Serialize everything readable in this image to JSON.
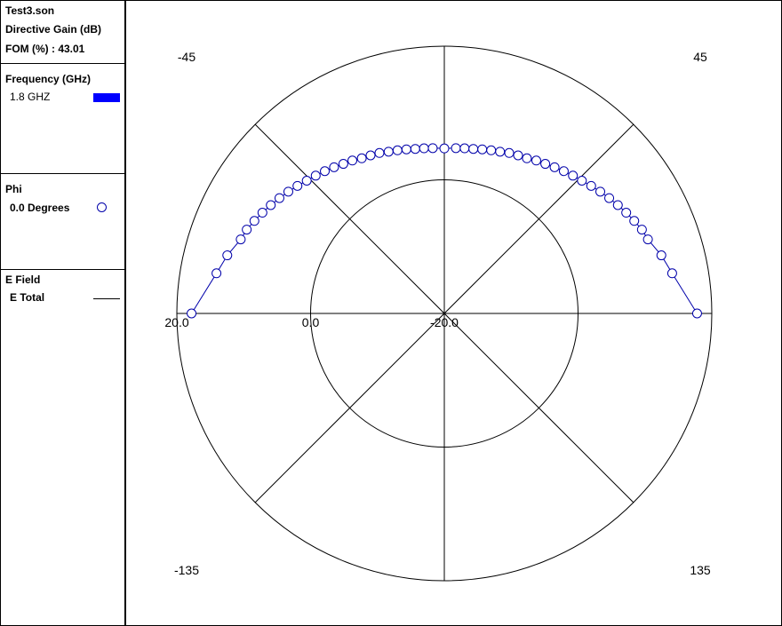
{
  "legend": {
    "file": "Test3.son",
    "quantity": "Directive Gain (dB)",
    "fom": "FOM (%) : 43.01",
    "frequency_header": "Frequency (GHz)",
    "frequency_item": "1.8 GHZ",
    "phi_header": "Phi",
    "phi_item": "0.0 Degrees",
    "efield_header": "E Field",
    "efield_item": "E Total"
  },
  "colors": {
    "series_line": "#0000aa",
    "series_marker": "#0000aa",
    "frequency_swatch": "#0000ff"
  },
  "chart_data": {
    "type": "polar-line",
    "radial_range": [
      -20,
      20
    ],
    "radial_ticks": [
      "20.0",
      "0.0",
      "-20.0"
    ],
    "angle_labels": [
      "-45",
      "45",
      "-135",
      "135"
    ],
    "angle_unit": "deg",
    "series": [
      {
        "name": "E Total",
        "marker": "open-circle",
        "points": [
          {
            "theta": -90,
            "r": 17.8
          },
          {
            "theta": -80,
            "r": 14.6
          },
          {
            "theta": -75,
            "r": 13.6
          },
          {
            "theta": -70,
            "r": 12.4
          },
          {
            "theta": -67,
            "r": 12.1
          },
          {
            "theta": -64,
            "r": 11.6
          },
          {
            "theta": -61,
            "r": 11.1
          },
          {
            "theta": -58,
            "r": 10.6
          },
          {
            "theta": -55,
            "r": 10.1
          },
          {
            "theta": -52,
            "r": 9.6
          },
          {
            "theta": -49,
            "r": 9.1
          },
          {
            "theta": -46,
            "r": 8.6
          },
          {
            "theta": -43,
            "r": 8.2
          },
          {
            "theta": -40,
            "r": 7.8
          },
          {
            "theta": -37,
            "r": 7.4
          },
          {
            "theta": -34,
            "r": 7.0
          },
          {
            "theta": -31,
            "r": 6.7
          },
          {
            "theta": -28,
            "r": 6.3
          },
          {
            "theta": -25,
            "r": 6.1
          },
          {
            "theta": -22,
            "r": 5.9
          },
          {
            "theta": -19,
            "r": 5.6
          },
          {
            "theta": -16,
            "r": 5.4
          },
          {
            "theta": -13,
            "r": 5.2
          },
          {
            "theta": -10,
            "r": 5.0
          },
          {
            "theta": -7,
            "r": 4.9
          },
          {
            "theta": -4,
            "r": 4.8
          },
          {
            "theta": 0,
            "r": 4.7
          },
          {
            "theta": 4,
            "r": 4.8
          },
          {
            "theta": 7,
            "r": 4.9
          },
          {
            "theta": 10,
            "r": 5.0
          },
          {
            "theta": 13,
            "r": 5.2
          },
          {
            "theta": 16,
            "r": 5.4
          },
          {
            "theta": 19,
            "r": 5.6
          },
          {
            "theta": 22,
            "r": 5.9
          },
          {
            "theta": 25,
            "r": 6.1
          },
          {
            "theta": 28,
            "r": 6.3
          },
          {
            "theta": 31,
            "r": 6.7
          },
          {
            "theta": 34,
            "r": 7.0
          },
          {
            "theta": 37,
            "r": 7.4
          },
          {
            "theta": 40,
            "r": 7.8
          },
          {
            "theta": 43,
            "r": 8.2
          },
          {
            "theta": 46,
            "r": 8.6
          },
          {
            "theta": 49,
            "r": 9.1
          },
          {
            "theta": 52,
            "r": 9.6
          },
          {
            "theta": 55,
            "r": 10.1
          },
          {
            "theta": 58,
            "r": 10.6
          },
          {
            "theta": 61,
            "r": 11.1
          },
          {
            "theta": 64,
            "r": 11.6
          },
          {
            "theta": 67,
            "r": 12.1
          },
          {
            "theta": 70,
            "r": 12.4
          },
          {
            "theta": 75,
            "r": 13.6
          },
          {
            "theta": 80,
            "r": 14.6
          },
          {
            "theta": 90,
            "r": 17.8
          }
        ]
      }
    ]
  }
}
